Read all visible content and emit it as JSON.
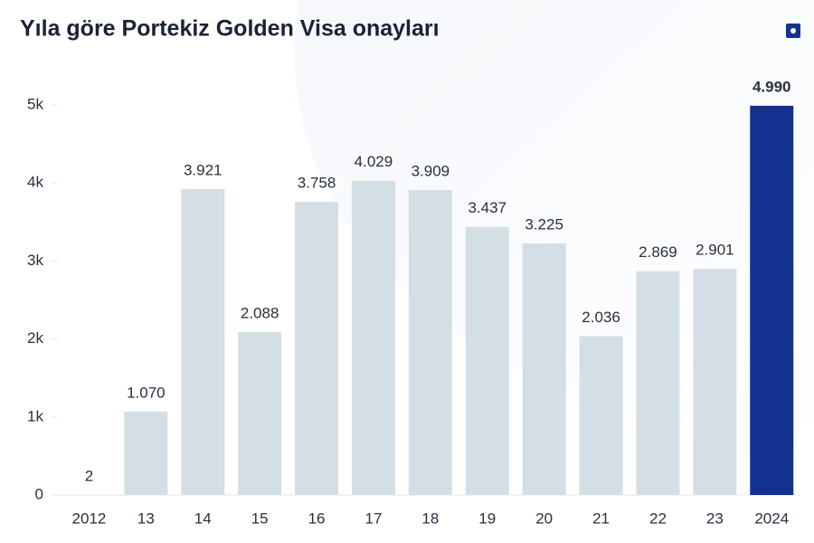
{
  "chart_data": {
    "type": "bar",
    "title": "Yıla göre Portekiz Golden Visa onayları",
    "categories": [
      "2012",
      "13",
      "14",
      "15",
      "16",
      "17",
      "18",
      "19",
      "20",
      "21",
      "22",
      "23",
      "2024"
    ],
    "values": [
      2,
      1070,
      3921,
      2088,
      3758,
      4029,
      3909,
      3437,
      3225,
      2036,
      2869,
      2901,
      4990
    ],
    "value_labels": [
      "2",
      "1.070",
      "3.921",
      "2.088",
      "3.758",
      "4.029",
      "3.909",
      "3.437",
      "3.225",
      "2.036",
      "2.869",
      "2.901",
      "4.990"
    ],
    "colors": [
      "#d3dfe5",
      "#d3dfe5",
      "#d3dfe5",
      "#d3dfe5",
      "#d3dfe5",
      "#d3dfe5",
      "#d3dfe5",
      "#d3dfe5",
      "#d3dfe5",
      "#d3dfe5",
      "#d3dfe5",
      "#d3dfe5",
      "#13318f"
    ],
    "ylim": [
      0,
      5000
    ],
    "yticks": [
      0,
      {
        "value": 1000,
        "label": "1k"
      },
      {
        "value": 2000,
        "label": "2k"
      },
      {
        "value": 3000,
        "label": "3k"
      },
      {
        "value": 4000,
        "label": "4k"
      },
      {
        "value": 5000,
        "label": "5k"
      }
    ]
  }
}
